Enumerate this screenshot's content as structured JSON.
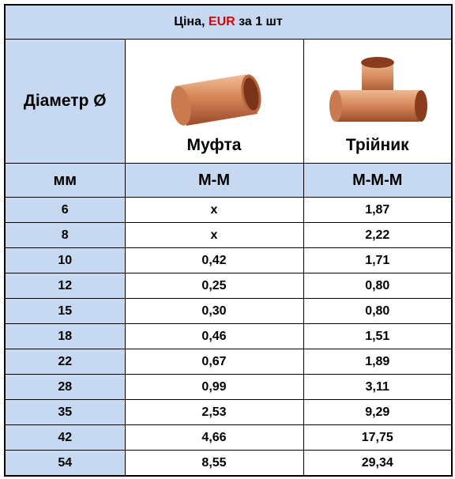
{
  "header": {
    "title_parts": [
      "Ціна,",
      "EUR",
      "за 1 шт"
    ]
  },
  "columns": {
    "diameter": "Діаметр Ø",
    "products": [
      "Муфта",
      "Трійник"
    ]
  },
  "units": [
    "мм",
    "М-М",
    "М-М-М"
  ],
  "table": {
    "rows": [
      [
        "6",
        "x",
        "1,87"
      ],
      [
        "8",
        "x",
        "2,22"
      ],
      [
        "10",
        "0,42",
        "1,71"
      ],
      [
        "12",
        "0,25",
        "0,80"
      ],
      [
        "15",
        "0,30",
        "0,80"
      ],
      [
        "18",
        "0,46",
        "1,51"
      ],
      [
        "22",
        "0,67",
        "1,89"
      ],
      [
        "28",
        "0,99",
        "3,11"
      ],
      [
        "35",
        "2,53",
        "9,29"
      ],
      [
        "42",
        "4,66",
        "17,75"
      ],
      [
        "54",
        "8,55",
        "29,34"
      ]
    ]
  }
}
